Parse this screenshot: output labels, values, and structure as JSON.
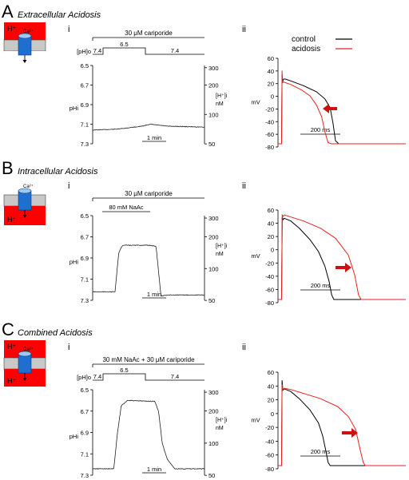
{
  "panels": [
    {
      "letter": "A",
      "title": "Extracellular Acidosis",
      "sub_i": "i",
      "sub_ii": "ii",
      "cartoon": {
        "ion": "Ca²⁺",
        "h_label": "H⁺",
        "mode": "extracellular",
        "red": "#ff0000",
        "channel": "#1e6fd0"
      },
      "left": {
        "drug_label": "30 μM cariporide",
        "pho_label": "[pH]o",
        "pho_steps": [
          "7.4",
          "6.5",
          "7.4"
        ],
        "nac_label": "",
        "pHi_ticks": [
          "6.5",
          "6.7",
          "6.9",
          "7.1",
          "7.3"
        ],
        "pHi_label": "pHi",
        "H_ticks": [
          "300",
          "200",
          "100",
          "50"
        ],
        "H_label": "[H⁺]i",
        "H_unit": "nM",
        "scale_label": "1 min"
      },
      "right": {
        "y_ticks": [
          "60",
          "40",
          "20",
          "0",
          "-20",
          "-40",
          "-60",
          "-80"
        ],
        "y_label": "mV",
        "scale_label": "200 ms",
        "legend": [
          {
            "name": "control",
            "color": "#000000"
          },
          {
            "name": "acidosis",
            "color": "#e8231f"
          }
        ],
        "arrow": "left"
      }
    },
    {
      "letter": "B",
      "title": "Intracellular Acidosis",
      "sub_i": "i",
      "sub_ii": "ii",
      "cartoon": {
        "ion": "Ca²⁺",
        "h_label": "H⁺",
        "mode": "intracellular",
        "red": "#ff0000",
        "channel": "#1e6fd0"
      },
      "left": {
        "drug_label": "30 μM cariporide",
        "pho_label": "",
        "pho_steps": [],
        "nac_label": "80 mM NaAc",
        "pHi_ticks": [
          "6.5",
          "6.7",
          "6.9",
          "7.1",
          "7.3"
        ],
        "pHi_label": "pHi",
        "H_ticks": [
          "300",
          "200",
          "100",
          "50"
        ],
        "H_label": "[H⁺]i",
        "H_unit": "nM",
        "scale_label": "1 min"
      },
      "right": {
        "y_ticks": [
          "60",
          "40",
          "20",
          "0",
          "-20",
          "-40",
          "-60",
          "-80"
        ],
        "y_label": "mV",
        "scale_label": "200 ms",
        "legend": [],
        "arrow": "right"
      }
    },
    {
      "letter": "C",
      "title": "Combined Acidosis",
      "sub_i": "i",
      "sub_ii": "ii",
      "cartoon": {
        "ion": "Ca²⁺",
        "h_label": "H⁺",
        "mode": "combined",
        "red": "#ff0000",
        "channel": "#1e6fd0"
      },
      "left": {
        "drug_label": "30 mM NaAc + 30 μM cariporide",
        "pho_label": "[pH]o",
        "pho_steps": [
          "7.4",
          "6.5",
          "7.4"
        ],
        "nac_label": "",
        "pHi_ticks": [
          "6.5",
          "6.7",
          "6.9",
          "7.1",
          "7.3"
        ],
        "pHi_label": "pHi",
        "H_ticks": [
          "300",
          "200",
          "100",
          "50"
        ],
        "H_label": "[H⁺]i",
        "H_unit": "nM",
        "scale_label": "1 min"
      },
      "right": {
        "y_ticks": [
          "60",
          "40",
          "20",
          "0",
          "-20",
          "-40",
          "-60",
          "-80"
        ],
        "y_label": "mV",
        "scale_label": "200 ms",
        "legend": [],
        "arrow": "right"
      }
    }
  ],
  "chart_data": [
    {
      "type": "line",
      "panel": "A-i",
      "x_unit": "min",
      "xlim": [
        0,
        4.5
      ],
      "ylabel": "pHi",
      "ylim": [
        6.5,
        7.3
      ],
      "y_inverted": true,
      "series": [
        {
          "name": "pHi",
          "x": [
            0,
            1.0,
            2.0,
            2.3,
            3.0,
            4.5
          ],
          "y": [
            7.16,
            7.15,
            7.12,
            7.1,
            7.12,
            7.13
          ]
        }
      ]
    },
    {
      "type": "line",
      "panel": "A-ii",
      "x_unit": "ms",
      "xlim": [
        0,
        600
      ],
      "ylabel": "mV",
      "ylim": [
        -80,
        60
      ],
      "series": [
        {
          "name": "control",
          "x": [
            0,
            17,
            19,
            21,
            26,
            35,
            60,
            120,
            180,
            220,
            245,
            258,
            270,
            285,
            600
          ],
          "y": [
            -80,
            -80,
            35,
            23,
            28,
            28,
            25,
            17,
            7,
            -5,
            -20,
            -45,
            -75,
            -80,
            -80
          ]
        },
        {
          "name": "acidosis",
          "x": [
            0,
            17,
            19,
            21,
            26,
            35,
            60,
            110,
            150,
            180,
            205,
            220,
            235,
            250,
            600
          ],
          "y": [
            -80,
            -80,
            42,
            22,
            23,
            22,
            19,
            10,
            0,
            -15,
            -35,
            -60,
            -78,
            -80,
            -80
          ]
        }
      ]
    },
    {
      "type": "line",
      "panel": "B-i",
      "x_unit": "min",
      "xlim": [
        0,
        4.5
      ],
      "ylabel": "pHi",
      "ylim": [
        6.5,
        7.3
      ],
      "y_inverted": true,
      "series": [
        {
          "name": "pHi",
          "x": [
            0,
            0.9,
            1.05,
            1.2,
            2.3,
            2.55,
            2.75,
            3.0,
            4.5
          ],
          "y": [
            7.22,
            7.22,
            6.85,
            6.78,
            6.78,
            6.79,
            7.26,
            7.25,
            7.25
          ]
        }
      ]
    },
    {
      "type": "line",
      "panel": "B-ii",
      "x_unit": "ms",
      "xlim": [
        0,
        600
      ],
      "ylabel": "mV",
      "ylim": [
        -72,
        60
      ],
      "series": [
        {
          "name": "control",
          "x": [
            0,
            17,
            20,
            24,
            30,
            60,
            100,
            150,
            190,
            220,
            240,
            252,
            262,
            600
          ],
          "y": [
            -72,
            -72,
            52,
            48,
            50,
            46,
            35,
            18,
            0,
            -22,
            -45,
            -65,
            -72,
            -72
          ]
        },
        {
          "name": "acidosis",
          "x": [
            0,
            17,
            20,
            24,
            30,
            60,
            120,
            200,
            270,
            330,
            360,
            378,
            390,
            600
          ],
          "y": [
            -72,
            -72,
            55,
            53,
            55,
            52,
            46,
            35,
            20,
            -5,
            -35,
            -65,
            -72,
            -72
          ]
        }
      ]
    },
    {
      "type": "line",
      "panel": "C-i",
      "x_unit": "min",
      "xlim": [
        0,
        4.5
      ],
      "ylabel": "pHi",
      "ylim": [
        6.5,
        7.3
      ],
      "y_inverted": true,
      "series": [
        {
          "name": "pHi",
          "x": [
            0,
            0.85,
            1.0,
            1.15,
            1.4,
            2.5,
            2.65,
            2.8,
            3.0,
            3.3,
            4.5
          ],
          "y": [
            7.24,
            7.24,
            6.9,
            6.65,
            6.6,
            6.61,
            6.7,
            7.0,
            7.15,
            7.24,
            7.24
          ]
        }
      ]
    },
    {
      "type": "line",
      "panel": "C-ii",
      "x_unit": "ms",
      "xlim": [
        0,
        600
      ],
      "ylabel": "mV",
      "ylim": [
        -80,
        60
      ],
      "series": [
        {
          "name": "control",
          "x": [
            0,
            17,
            19,
            23,
            30,
            60,
            100,
            150,
            190,
            210,
            225,
            235,
            245,
            600
          ],
          "y": [
            -80,
            -80,
            50,
            35,
            37,
            33,
            22,
            5,
            -15,
            -35,
            -58,
            -75,
            -80,
            -80
          ]
        },
        {
          "name": "acidosis",
          "x": [
            0,
            17,
            19,
            23,
            30,
            60,
            120,
            200,
            280,
            330,
            365,
            385,
            400,
            410,
            600
          ],
          "y": [
            -80,
            -80,
            44,
            36,
            38,
            36,
            30,
            22,
            10,
            -5,
            -25,
            -55,
            -75,
            -80,
            -80
          ]
        }
      ]
    }
  ]
}
